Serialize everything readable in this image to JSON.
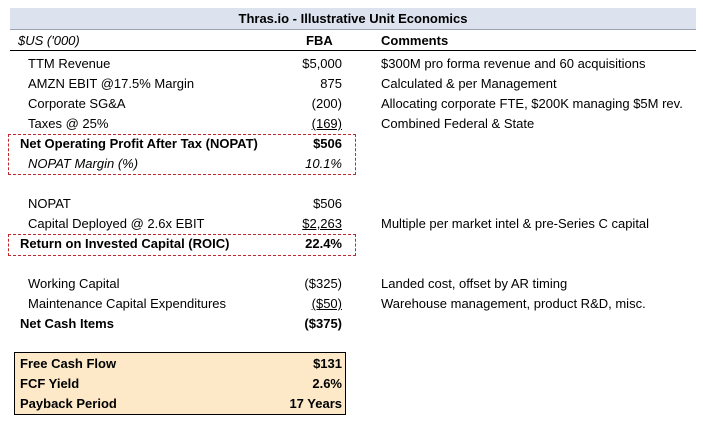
{
  "title": "Thras.io - Illustrative Unit Economics",
  "header": {
    "units": "$US ('000)",
    "fba": "FBA",
    "comments": "Comments"
  },
  "rows": {
    "ttm": {
      "label": "TTM Revenue",
      "value": "$5,000",
      "comment": "$300M pro forma revenue and 60 acquisitions"
    },
    "ebit": {
      "label": "AMZN EBIT @17.5% Margin",
      "value": "875",
      "comment": "Calculated & per Management"
    },
    "sga": {
      "label": "Corporate SG&A",
      "value": "(200)",
      "comment": "Allocating corporate FTE, $200K managing $5M rev."
    },
    "taxes": {
      "label": "Taxes @ 25%",
      "value": "(169)",
      "comment": "Combined Federal & State"
    },
    "nopat_line": {
      "label": "Net Operating Profit After Tax (NOPAT)",
      "value": "$506"
    },
    "nopat_margin": {
      "label": "NOPAT Margin (%)",
      "value": "10.1%"
    },
    "nopat": {
      "label": "NOPAT",
      "value": "$506"
    },
    "capital": {
      "label": "Capital Deployed @ 2.6x EBIT",
      "value": "$2,263",
      "comment": "Multiple per market intel & pre-Series C capital"
    },
    "roic": {
      "label": "Return on Invested Capital (ROIC)",
      "value": "22.4%"
    },
    "working": {
      "label": "Working Capital",
      "value": "($325)",
      "comment": "Landed cost, offset by AR timing"
    },
    "maint": {
      "label": "Maintenance Capital Expenditures",
      "value": "($50)",
      "comment": "Warehouse management, product R&D, misc."
    },
    "net_cash": {
      "label": "Net Cash Items",
      "value": "($375)"
    }
  },
  "summary": {
    "fcf": {
      "label": "Free Cash Flow",
      "value": "$131"
    },
    "yield": {
      "label": "FCF Yield",
      "value": "2.6%"
    },
    "payback": {
      "label": "Payback Period",
      "value": "17 Years"
    }
  },
  "colors": {
    "title_bg": "#dce3ee",
    "summary_bg": "#fde9c8",
    "dashed_border": "#c0282d"
  }
}
